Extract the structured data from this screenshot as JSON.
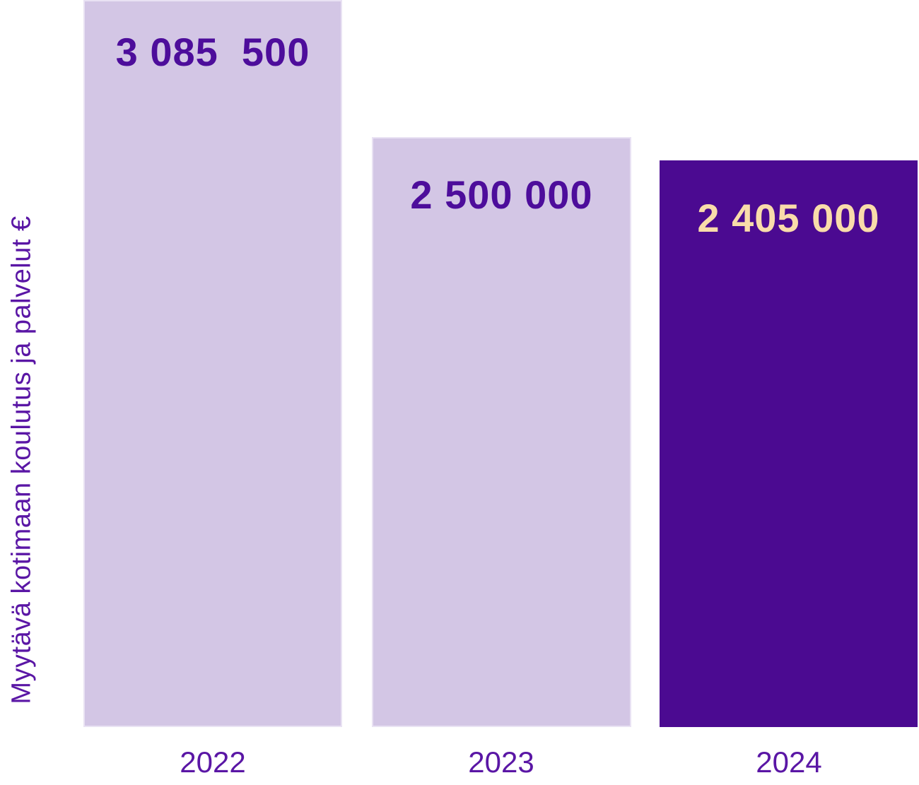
{
  "chart_data": {
    "type": "bar",
    "categories": [
      "2022",
      "2023",
      "2024"
    ],
    "values": [
      3085500,
      2500000,
      2405000
    ],
    "value_labels": [
      "3 085  500",
      "2 500 000",
      "2 405 000"
    ],
    "title": "",
    "xlabel": "",
    "ylabel": "Myytävä kotimaan koulutus ja palvelut €",
    "ylim": [
      0,
      3085500
    ],
    "grid": false,
    "legend": "none",
    "bar_colors": [
      "#d3c6e5",
      "#d3c6e5",
      "#4b0a91"
    ],
    "value_label_colors": [
      "#4d0d9b",
      "#4d0d9b",
      "#f9dcaa"
    ],
    "axis_text_color": "#5a16a5",
    "background_color": "#ffffff"
  }
}
